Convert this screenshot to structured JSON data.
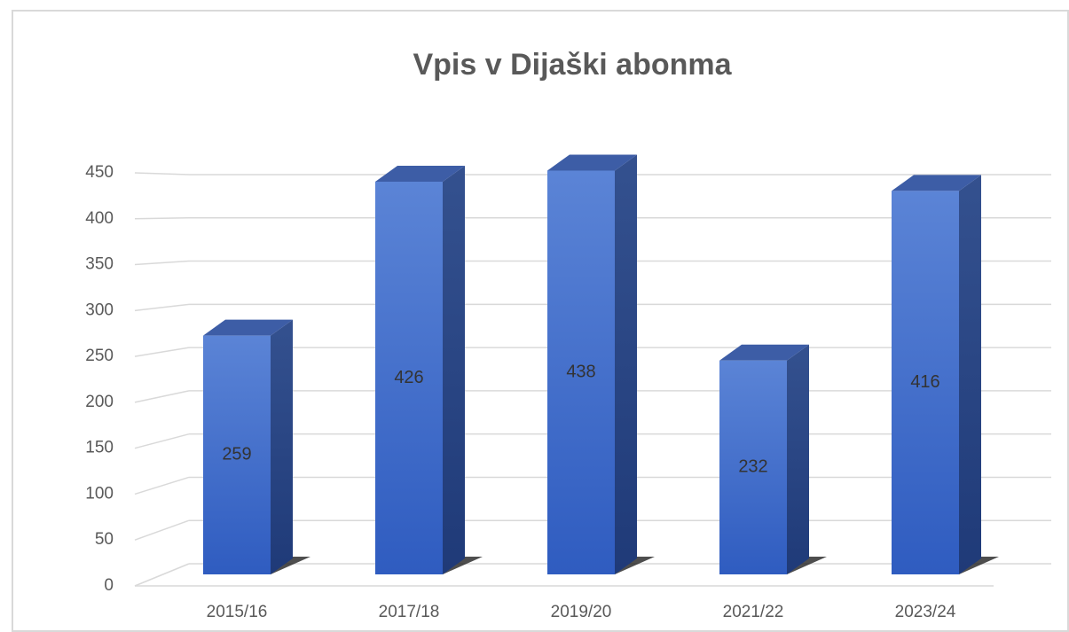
{
  "chart_data": {
    "type": "bar3d",
    "title": "Vpis v Dijaški abonma",
    "categories": [
      "2015/16",
      "2017/18",
      "2019/20",
      "2021/22",
      "2023/24"
    ],
    "values": [
      259,
      426,
      438,
      232,
      416
    ],
    "color": "#4472c4",
    "ylim": [
      0,
      450
    ],
    "yticks": [
      0,
      50,
      100,
      150,
      200,
      250,
      300,
      350,
      400,
      450
    ],
    "grid": true
  }
}
